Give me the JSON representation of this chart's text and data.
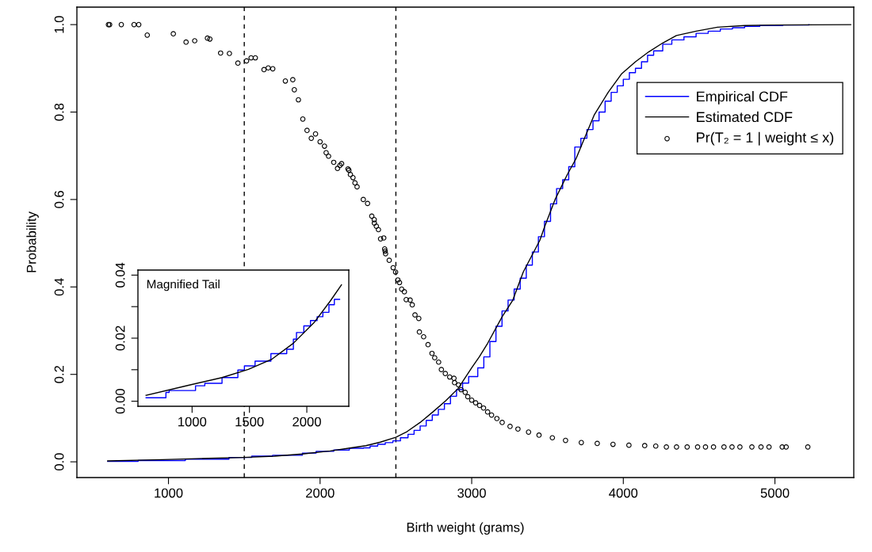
{
  "chart_data": [
    {
      "type": "line",
      "xlabel": "Birth weight (grams)",
      "ylabel": "Probability",
      "xlim": [
        396,
        5520
      ],
      "ylim": [
        -0.036,
        1.04
      ],
      "xticks": [
        1000,
        2000,
        3000,
        4000,
        5000
      ],
      "yticks": [
        {
          "value": 0,
          "label": "0.0"
        },
        {
          "value": 0.2,
          "label": "0.2"
        },
        {
          "value": 0.4,
          "label": "0.4"
        },
        {
          "value": 0.6,
          "label": "0.6"
        },
        {
          "value": 0.8,
          "label": "0.8"
        },
        {
          "value": 1,
          "label": "1.0"
        }
      ],
      "grid": false,
      "legend": "top right",
      "ref_lines": [
        {
          "axis": "x",
          "value": 1500,
          "color": "#000000",
          "line_style": "dashed"
        },
        {
          "axis": "x",
          "value": 2500,
          "color": "#000000",
          "line_style": "dashed"
        }
      ],
      "series": [
        {
          "name": "Empirical CDF",
          "type": "step",
          "color": "#0000ff",
          "marker": "none",
          "x": [
            599,
            800,
            1111,
            1399,
            1549,
            1687,
            1883,
            1974,
            2090,
            2193,
            2286,
            2330,
            2380,
            2430,
            2480,
            2530,
            2580,
            2620,
            2660,
            2700,
            2740,
            2780,
            2820,
            2860,
            2900,
            2940,
            2980,
            3040,
            3080,
            3120,
            3160,
            3200,
            3240,
            3280,
            3320,
            3360,
            3400,
            3440,
            3480,
            3520,
            3560,
            3600,
            3640,
            3680,
            3720,
            3760,
            3800,
            3840,
            3880,
            3920,
            3960,
            4000,
            4040,
            4080,
            4120,
            4160,
            4200,
            4260,
            4320,
            4400,
            4480,
            4560,
            4640,
            4720,
            4800,
            4900,
            5052,
            5224
          ],
          "values": [
            0.001,
            0.003,
            0.006,
            0.01,
            0.013,
            0.015,
            0.02,
            0.024,
            0.027,
            0.031,
            0.032,
            0.036,
            0.04,
            0.044,
            0.048,
            0.055,
            0.063,
            0.072,
            0.082,
            0.095,
            0.107,
            0.12,
            0.133,
            0.15,
            0.165,
            0.18,
            0.195,
            0.215,
            0.24,
            0.275,
            0.31,
            0.345,
            0.37,
            0.395,
            0.42,
            0.45,
            0.48,
            0.515,
            0.55,
            0.59,
            0.625,
            0.645,
            0.675,
            0.72,
            0.74,
            0.76,
            0.78,
            0.8,
            0.825,
            0.845,
            0.86,
            0.875,
            0.89,
            0.9,
            0.915,
            0.93,
            0.94,
            0.955,
            0.965,
            0.972,
            0.98,
            0.985,
            0.99,
            0.993,
            0.996,
            0.998,
            0.999,
            1.0
          ]
        },
        {
          "name": "Estimated CDF",
          "color": "#000000",
          "marker": "none",
          "x": [
            599,
            961,
            1261,
            1491,
            1698,
            1883,
            2067,
            2205,
            2302,
            2398,
            2500,
            2573,
            2660,
            2747,
            2830,
            2911,
            3000,
            3050,
            3105,
            3201,
            3270,
            3340,
            3450,
            3480,
            3550,
            3629,
            3689,
            3750,
            3809,
            3900,
            3990,
            4080,
            4169,
            4260,
            4350,
            4480,
            4620,
            4800,
            4980,
            5500
          ],
          "values": [
            0.002,
            0.005,
            0.008,
            0.01,
            0.013,
            0.018,
            0.025,
            0.032,
            0.037,
            0.045,
            0.056,
            0.069,
            0.09,
            0.115,
            0.14,
            0.168,
            0.215,
            0.24,
            0.271,
            0.332,
            0.369,
            0.434,
            0.507,
            0.537,
            0.6,
            0.656,
            0.694,
            0.745,
            0.794,
            0.845,
            0.888,
            0.915,
            0.938,
            0.958,
            0.975,
            0.985,
            0.994,
            0.998,
            0.999,
            1.0
          ]
        },
        {
          "name": "Pr(T₂ = 1 | weight ≤ x)",
          "type": "scatter",
          "color": "#000000",
          "marker": "circle",
          "x": [
            604,
            612,
            689,
            773,
            804,
            860,
            1032,
            1116,
            1173,
            1257,
            1273,
            1344,
            1402,
            1458,
            1515,
            1545,
            1573,
            1630,
            1658,
            1688,
            1771,
            1820,
            1830,
            1857,
            1886,
            1914,
            1942,
            1970,
            2000,
            2029,
            2040,
            2056,
            2090,
            2115,
            2131,
            2142,
            2184,
            2190,
            2200,
            2217,
            2230,
            2244,
            2285,
            2313,
            2341,
            2357,
            2358,
            2371,
            2385,
            2399,
            2420,
            2426,
            2429,
            2432,
            2456,
            2482,
            2498,
            2513,
            2524,
            2538,
            2556,
            2568,
            2594,
            2608,
            2626,
            2651,
            2655,
            2683,
            2712,
            2738,
            2756,
            2782,
            2800,
            2826,
            2855,
            2883,
            2887,
            2913,
            2930,
            2957,
            2974,
            3000,
            3026,
            3052,
            3078,
            3105,
            3131,
            3166,
            3201,
            3253,
            3305,
            3375,
            3444,
            3532,
            3619,
            3723,
            3828,
            3932,
            4037,
            4141,
            4214,
            4284,
            4351,
            4421,
            4490,
            4542,
            4595,
            4664,
            4717,
            4769,
            4848,
            4908,
            4961,
            5048,
            5074,
            5217
          ],
          "values": [
            1.0,
            1.0,
            1.0,
            1.0,
            1.0,
            0.976,
            0.979,
            0.96,
            0.963,
            0.969,
            0.967,
            0.935,
            0.934,
            0.912,
            0.917,
            0.924,
            0.924,
            0.897,
            0.901,
            0.899,
            0.871,
            0.874,
            0.851,
            0.828,
            0.784,
            0.758,
            0.74,
            0.75,
            0.732,
            0.722,
            0.707,
            0.699,
            0.685,
            0.671,
            0.678,
            0.682,
            0.67,
            0.667,
            0.657,
            0.65,
            0.638,
            0.629,
            0.6,
            0.591,
            0.562,
            0.554,
            0.546,
            0.539,
            0.531,
            0.51,
            0.512,
            0.487,
            0.482,
            0.476,
            0.461,
            0.444,
            0.434,
            0.416,
            0.41,
            0.395,
            0.389,
            0.371,
            0.37,
            0.359,
            0.336,
            0.328,
            0.297,
            0.286,
            0.268,
            0.248,
            0.238,
            0.228,
            0.211,
            0.202,
            0.194,
            0.191,
            0.181,
            0.176,
            0.165,
            0.159,
            0.149,
            0.141,
            0.135,
            0.129,
            0.123,
            0.114,
            0.107,
            0.099,
            0.09,
            0.081,
            0.075,
            0.068,
            0.061,
            0.055,
            0.049,
            0.044,
            0.042,
            0.04,
            0.038,
            0.037,
            0.036,
            0.034,
            0.034,
            0.034,
            0.034,
            0.034,
            0.034,
            0.034,
            0.034,
            0.034,
            0.034,
            0.034,
            0.034,
            0.034,
            0.034,
            0.034
          ]
        }
      ]
    },
    {
      "type": "line",
      "title": "Magnified Tail",
      "xlim": [
        528,
        2366
      ],
      "ylim": [
        -0.0016,
        0.0416
      ],
      "xticks": [
        1000,
        1500,
        2000
      ],
      "yticks": [
        {
          "value": 0,
          "label": "0.00"
        },
        {
          "value": 0.01,
          "label": null
        },
        {
          "value": 0.02,
          "label": "0.02"
        },
        {
          "value": 0.03,
          "label": null
        },
        {
          "value": 0.04,
          "label": "0.04"
        }
      ],
      "grid": false,
      "series": [
        {
          "type": "step",
          "color": "#0000ff",
          "marker": "none",
          "x": [
            599,
            772,
            800,
            1030,
            1111,
            1261,
            1399,
            1456,
            1549,
            1687,
            1825,
            1883,
            1910,
            1974,
            2032,
            2090,
            2140,
            2193,
            2240,
            2286
          ],
          "values": [
            0.0011,
            0.0028,
            0.0034,
            0.0049,
            0.0057,
            0.0075,
            0.0099,
            0.0112,
            0.0127,
            0.0151,
            0.0165,
            0.0197,
            0.0218,
            0.0239,
            0.0256,
            0.0268,
            0.0282,
            0.0306,
            0.0323,
            0.0323
          ]
        },
        {
          "color": "#000000",
          "marker": "none",
          "x": [
            599,
            961,
            1261,
            1491,
            1698,
            1883,
            2067,
            2205,
            2302
          ],
          "values": [
            0.0019,
            0.005,
            0.0075,
            0.0101,
            0.0134,
            0.0184,
            0.0251,
            0.0318,
            0.0369
          ]
        }
      ]
    }
  ]
}
